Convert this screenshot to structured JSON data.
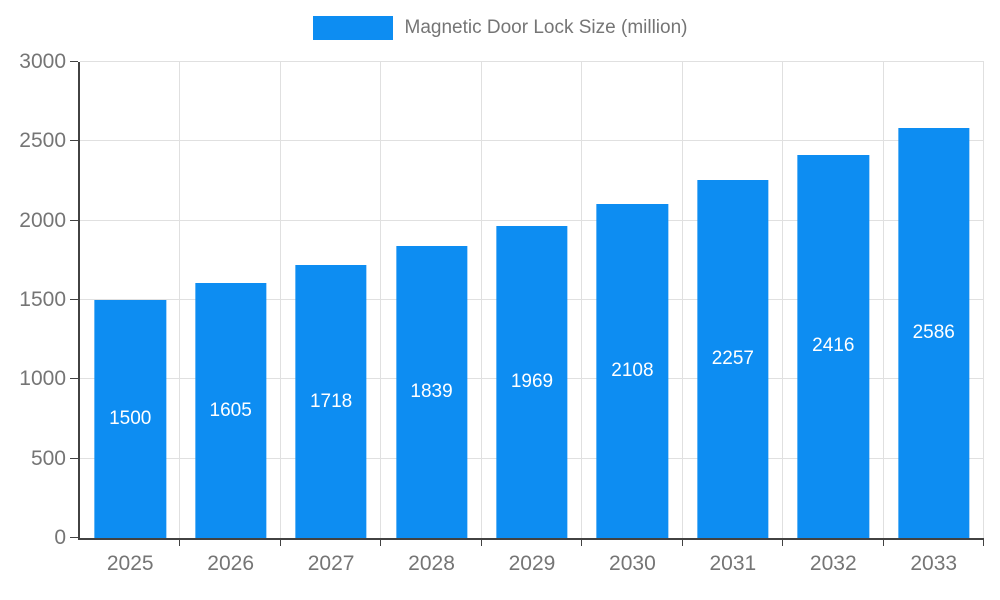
{
  "legend": {
    "label": "Magnetic Door Lock Size (million)"
  },
  "colors": {
    "bar": "#0d8df2",
    "axis": "#424242",
    "grid": "#e0e0e0",
    "tick_text": "#757575",
    "value_text": "#ffffff",
    "background": "#ffffff"
  },
  "chart_data": {
    "type": "bar",
    "title": "Magnetic Door Lock Size (million)",
    "categories": [
      "2025",
      "2026",
      "2027",
      "2028",
      "2029",
      "2030",
      "2031",
      "2032",
      "2033"
    ],
    "values": [
      1500,
      1605,
      1718,
      1839,
      1969,
      2108,
      2257,
      2416,
      2586
    ],
    "xlabel": "",
    "ylabel": "",
    "ylim": [
      0,
      3000
    ],
    "ytick_step": 500,
    "yticks": [
      0,
      500,
      1000,
      1500,
      2000,
      2500,
      3000
    ],
    "grid": true,
    "legend_position": "top-center",
    "value_label_position": "inside-middle"
  }
}
